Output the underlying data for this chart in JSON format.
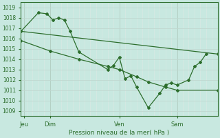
{
  "title": "Pression niveau de la mer( hPa )",
  "bg_color": "#c8e8e0",
  "grid_color": "#b0d8d0",
  "line_color": "#2d6e2d",
  "xlim": [
    0,
    34
  ],
  "ylim": [
    1008.5,
    1019.5
  ],
  "yticks": [
    1009,
    1010,
    1011,
    1012,
    1013,
    1014,
    1015,
    1016,
    1017,
    1018,
    1019
  ],
  "xtick_positions": [
    0.5,
    5,
    17,
    27
  ],
  "xtick_labels": [
    "Jeu",
    "Dim",
    "Ven",
    "Sam"
  ],
  "vlines": [
    0.5,
    5,
    17,
    27
  ],
  "series1_jagged": {
    "x": [
      0,
      3,
      4.5,
      5.5,
      6.5,
      7.5,
      8.5,
      10,
      15,
      16,
      17,
      18,
      19,
      20,
      22,
      24,
      25,
      26,
      27,
      29,
      30,
      31,
      32
    ],
    "y": [
      1016.7,
      1018.5,
      1018.4,
      1017.8,
      1018.0,
      1017.8,
      1016.7,
      1014.7,
      1013.0,
      1013.4,
      1014.2,
      1012.1,
      1012.4,
      1011.3,
      1009.3,
      1010.7,
      1011.5,
      1011.7,
      1011.5,
      1012.0,
      1013.3,
      1013.7,
      1014.5
    ]
  },
  "series2_upper": {
    "x": [
      0,
      34
    ],
    "y": [
      1016.7,
      1014.5
    ]
  },
  "series3_lower": {
    "x": [
      0,
      5,
      10,
      15,
      17,
      20,
      22,
      25,
      27,
      34
    ],
    "y": [
      1015.8,
      1014.8,
      1014.0,
      1013.3,
      1013.0,
      1012.3,
      1011.8,
      1011.3,
      1011.0,
      1011.0
    ]
  }
}
